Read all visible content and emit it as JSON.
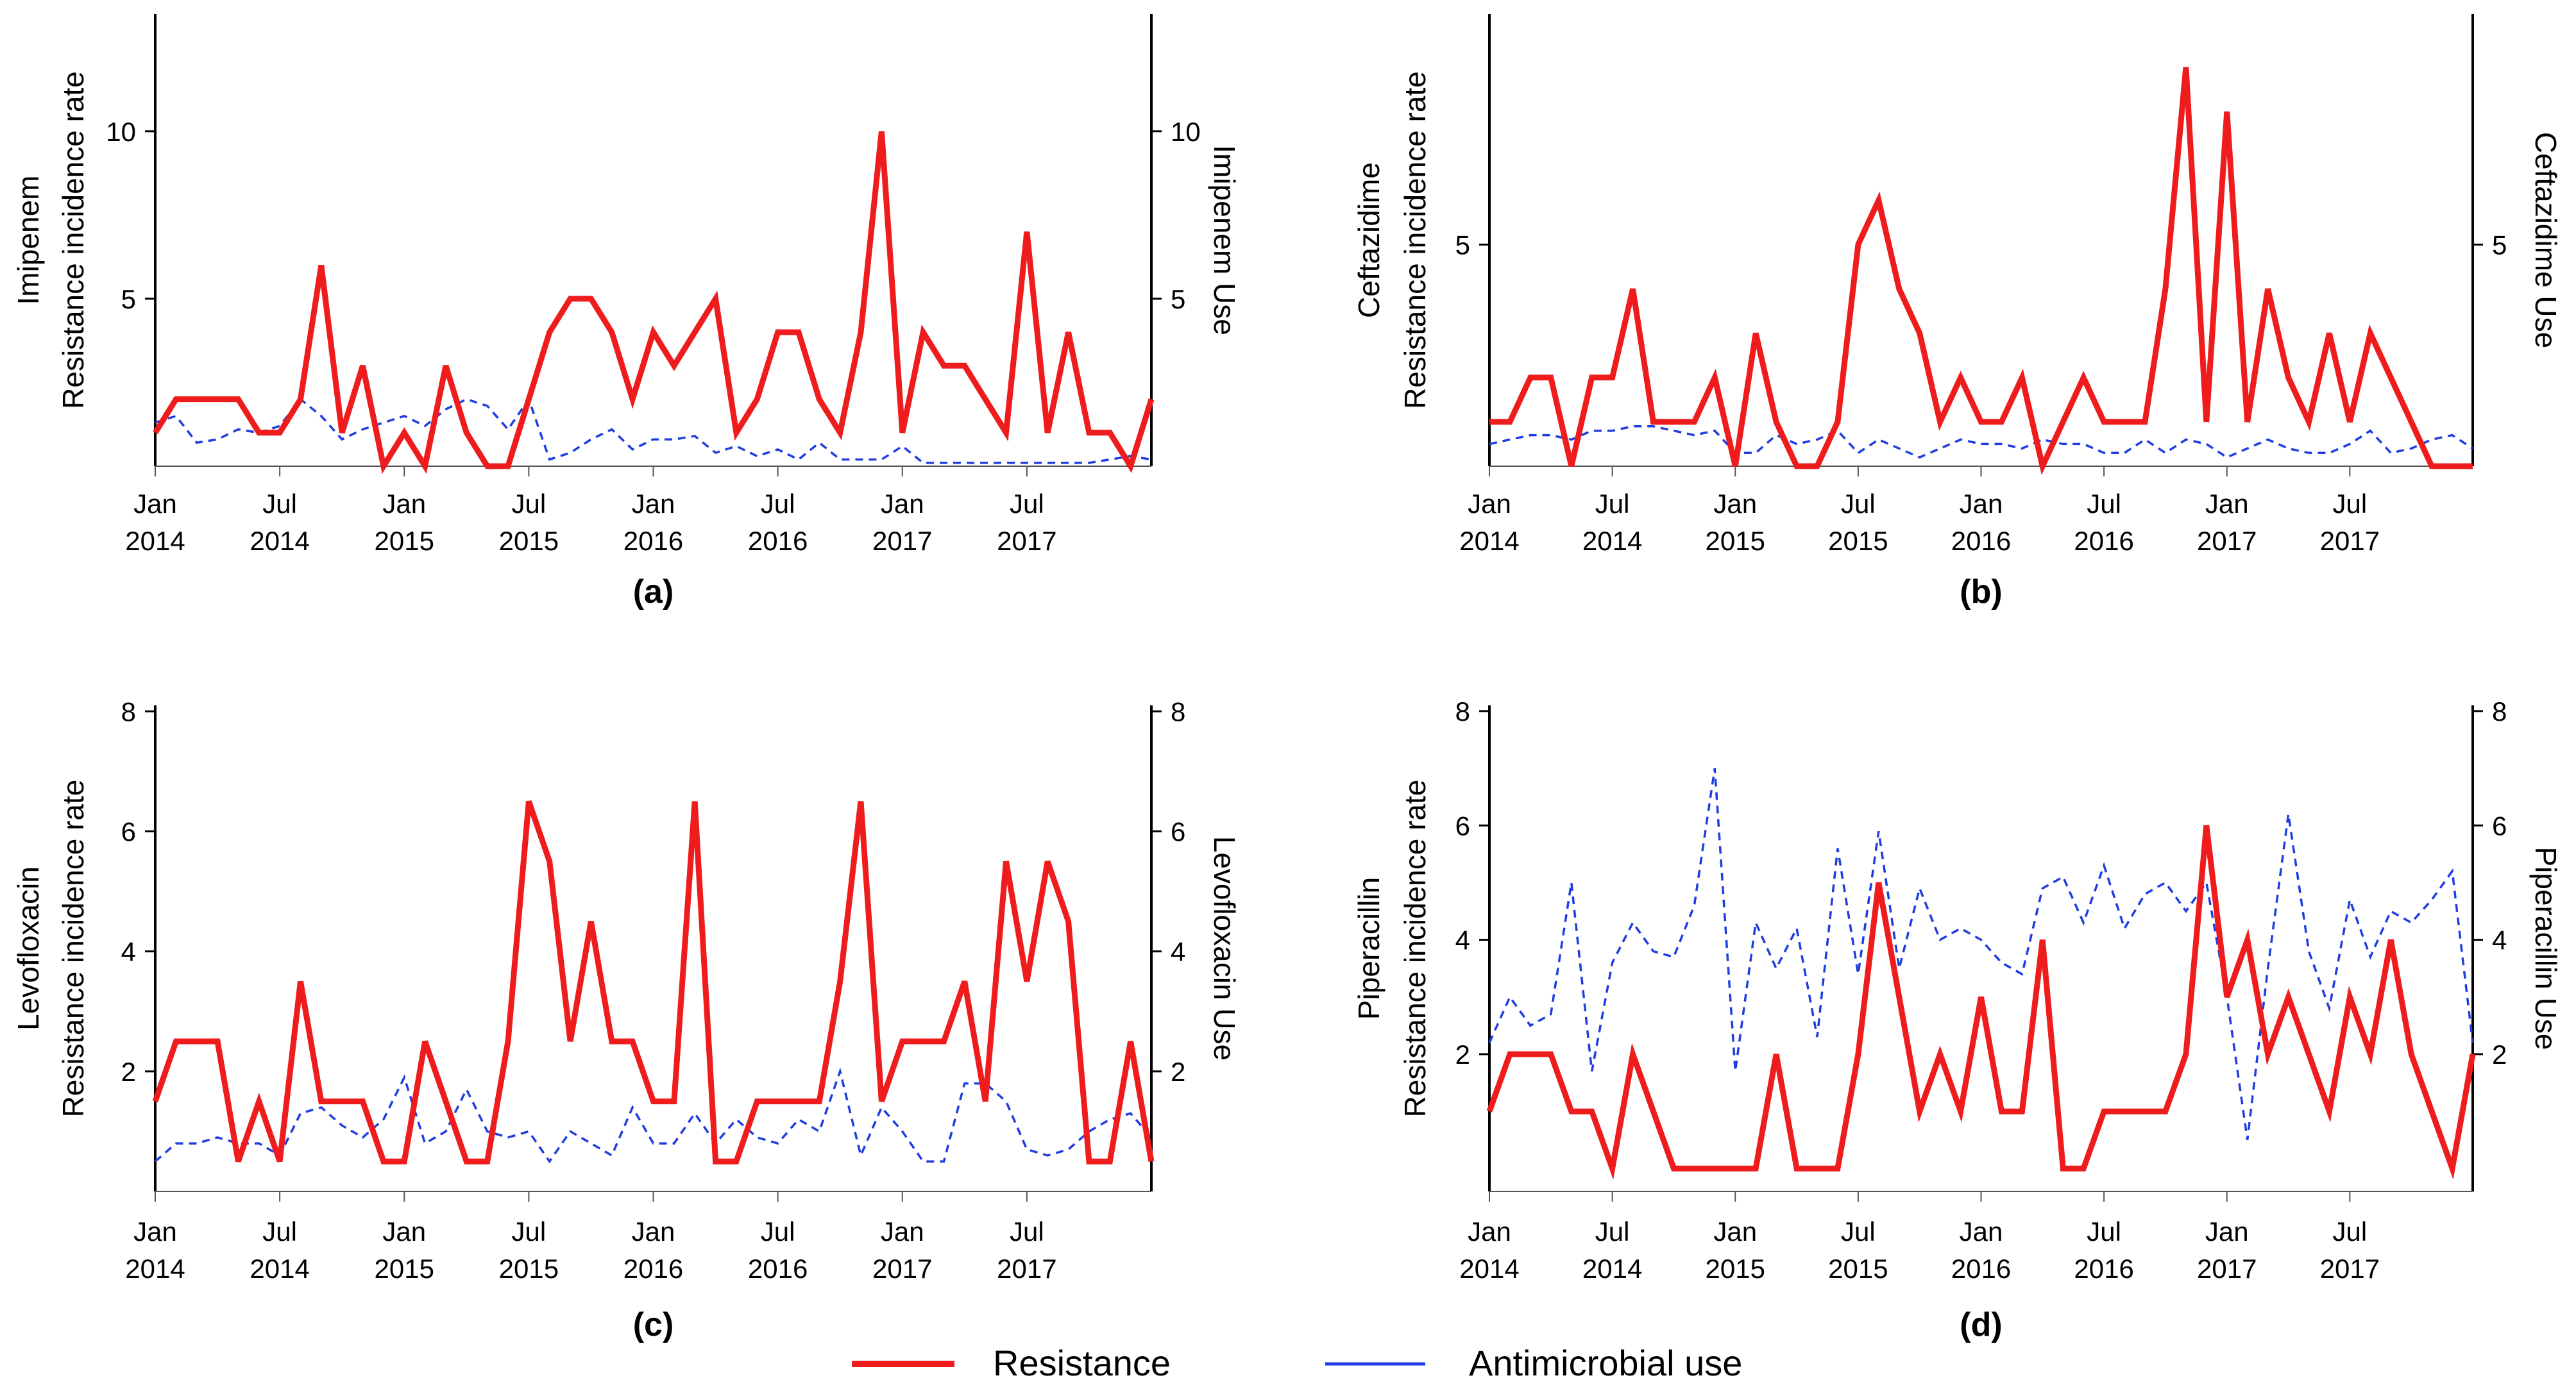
{
  "chart_data": [
    {
      "type": "line",
      "panel_label": "(a)",
      "drug": "Imipenem",
      "ylabel_left": "Resistance incidence rate",
      "ylabel_right": "Imipenem  Use",
      "ylim_left": [
        0,
        13.5
      ],
      "ylim_right": [
        0,
        13.5
      ],
      "yticks_left": [
        5,
        10
      ],
      "yticks_right": [
        5,
        10
      ],
      "x_ticks": [
        {
          "index": 0,
          "line1": "Jan",
          "line2": "2014"
        },
        {
          "index": 6,
          "line1": "Jul",
          "line2": "2014"
        },
        {
          "index": 12,
          "line1": "Jan",
          "line2": "2015"
        },
        {
          "index": 18,
          "line1": "Jul",
          "line2": "2015"
        },
        {
          "index": 24,
          "line1": "Jan",
          "line2": "2016"
        },
        {
          "index": 30,
          "line1": "Jul",
          "line2": "2016"
        },
        {
          "index": 36,
          "line1": "Jan",
          "line2": "2017"
        },
        {
          "index": 42,
          "line1": "Jul",
          "line2": "2017"
        }
      ],
      "series": [
        {
          "name": "Resistance",
          "axis": "left",
          "color": "#ee1c1c",
          "style": "solid",
          "values": [
            1,
            2,
            2,
            2,
            2,
            1,
            1,
            2,
            6,
            1,
            3,
            0,
            1,
            0,
            3,
            1,
            0,
            0,
            2,
            4,
            5,
            5,
            4,
            2,
            4,
            3,
            4,
            5,
            1,
            2,
            4,
            4,
            2,
            1,
            4,
            10,
            1,
            4,
            3,
            3,
            2,
            1,
            7,
            1,
            4,
            1,
            1,
            0,
            2
          ]
        },
        {
          "name": "Antimicrobial use",
          "axis": "right",
          "color": "#1f3de0",
          "style": "dashed",
          "values": [
            1.3,
            1.5,
            0.7,
            0.8,
            1.1,
            1.0,
            1.2,
            2.0,
            1.5,
            0.8,
            1.1,
            1.3,
            1.5,
            1.2,
            1.7,
            2.0,
            1.8,
            1.1,
            2.0,
            0.2,
            0.4,
            0.8,
            1.1,
            0.5,
            0.8,
            0.8,
            0.9,
            0.4,
            0.6,
            0.3,
            0.5,
            0.2,
            0.7,
            0.2,
            0.2,
            0.2,
            0.6,
            0.1,
            0.1,
            0.1,
            0.1,
            0.1,
            0.1,
            0.1,
            0.1,
            0.1,
            0.2,
            0.3,
            0.2
          ]
        }
      ]
    },
    {
      "type": "line",
      "panel_label": "(b)",
      "drug": "Ceftazidime",
      "ylabel_left": "Resistance incidence rate",
      "ylabel_right": "Ceftazidime Use",
      "ylim_left": [
        0,
        10.2
      ],
      "ylim_right": [
        0,
        10.2
      ],
      "yticks_left": [
        5
      ],
      "yticks_right": [
        5
      ],
      "x_ticks": [
        {
          "index": 0,
          "line1": "Jan",
          "line2": "2014"
        },
        {
          "index": 6,
          "line1": "Jul",
          "line2": "2014"
        },
        {
          "index": 12,
          "line1": "Jan",
          "line2": "2015"
        },
        {
          "index": 18,
          "line1": "Jul",
          "line2": "2015"
        },
        {
          "index": 24,
          "line1": "Jan",
          "line2": "2016"
        },
        {
          "index": 30,
          "line1": "Jul",
          "line2": "2016"
        },
        {
          "index": 36,
          "line1": "Jan",
          "line2": "2017"
        },
        {
          "index": 42,
          "line1": "Jul",
          "line2": "2017"
        }
      ],
      "series": [
        {
          "name": "Resistance",
          "axis": "left",
          "color": "#ee1c1c",
          "style": "solid",
          "values": [
            1,
            1,
            2,
            2,
            0,
            2,
            2,
            4,
            1,
            1,
            1,
            2,
            0,
            3,
            1,
            0,
            0,
            1,
            5,
            6,
            4,
            3,
            1,
            2,
            1,
            1,
            2,
            0,
            1,
            2,
            1,
            1,
            1,
            4,
            9,
            1,
            8,
            1,
            4,
            2,
            1,
            3,
            1,
            3,
            2,
            1,
            0,
            0,
            0
          ]
        },
        {
          "name": "Antimicrobial use",
          "axis": "right",
          "color": "#1f3de0",
          "style": "dashed",
          "values": [
            0.5,
            0.6,
            0.7,
            0.7,
            0.6,
            0.8,
            0.8,
            0.9,
            0.9,
            0.8,
            0.7,
            0.8,
            0.3,
            0.3,
            0.7,
            0.5,
            0.6,
            0.8,
            0.3,
            0.6,
            0.4,
            0.2,
            0.4,
            0.6,
            0.5,
            0.5,
            0.4,
            0.6,
            0.5,
            0.5,
            0.3,
            0.3,
            0.6,
            0.3,
            0.6,
            0.5,
            0.2,
            0.4,
            0.6,
            0.4,
            0.3,
            0.3,
            0.5,
            0.8,
            0.3,
            0.4,
            0.6,
            0.7,
            0.4
          ]
        }
      ]
    },
    {
      "type": "line",
      "panel_label": "(c)",
      "drug": "Levofloxacin",
      "ylabel_left": "Resistance incidence rate",
      "ylabel_right": "Levofloxacin Use",
      "ylim_left": [
        0,
        8.1
      ],
      "ylim_right": [
        0,
        8.1
      ],
      "yticks_left": [
        2,
        4,
        6,
        8
      ],
      "yticks_right": [
        2,
        4,
        6,
        8
      ],
      "x_ticks": [
        {
          "index": 0,
          "line1": "Jan",
          "line2": "2014"
        },
        {
          "index": 6,
          "line1": "Jul",
          "line2": "2014"
        },
        {
          "index": 12,
          "line1": "Jan",
          "line2": "2015"
        },
        {
          "index": 18,
          "line1": "Jul",
          "line2": "2015"
        },
        {
          "index": 24,
          "line1": "Jan",
          "line2": "2016"
        },
        {
          "index": 30,
          "line1": "Jul",
          "line2": "2016"
        },
        {
          "index": 36,
          "line1": "Jan",
          "line2": "2017"
        },
        {
          "index": 42,
          "line1": "Jul",
          "line2": "2017"
        }
      ],
      "series": [
        {
          "name": "Resistance",
          "axis": "left",
          "color": "#ee1c1c",
          "style": "solid",
          "values": [
            1.5,
            2.5,
            2.5,
            2.5,
            0.5,
            1.5,
            0.5,
            3.5,
            1.5,
            1.5,
            1.5,
            0.5,
            0.5,
            2.5,
            1.5,
            0.5,
            0.5,
            2.5,
            6.5,
            5.5,
            2.5,
            4.5,
            2.5,
            2.5,
            1.5,
            1.5,
            6.5,
            0.5,
            0.5,
            1.5,
            1.5,
            1.5,
            1.5,
            3.5,
            6.5,
            1.5,
            2.5,
            2.5,
            2.5,
            3.5,
            1.5,
            5.5,
            3.5,
            5.5,
            4.5,
            0.5,
            0.5,
            2.5,
            0.5
          ]
        },
        {
          "name": "Antimicrobial use",
          "axis": "right",
          "color": "#1f3de0",
          "style": "dashed",
          "values": [
            0.5,
            0.8,
            0.8,
            0.9,
            0.8,
            0.8,
            0.6,
            1.3,
            1.4,
            1.1,
            0.9,
            1.2,
            1.9,
            0.8,
            1.0,
            1.7,
            1.0,
            0.9,
            1.0,
            0.5,
            1.0,
            0.8,
            0.6,
            1.4,
            0.8,
            0.8,
            1.3,
            0.8,
            1.2,
            0.9,
            0.8,
            1.2,
            1.0,
            2.0,
            0.6,
            1.4,
            1.0,
            0.5,
            0.5,
            1.8,
            1.8,
            1.5,
            0.7,
            0.6,
            0.7,
            1.0,
            1.2,
            1.3,
            0.9
          ]
        }
      ]
    },
    {
      "type": "line",
      "panel_label": "(d)",
      "drug": "Piperacillin",
      "ylabel_left": "Resistance incidence rate",
      "ylabel_right": "Piperacillin Use",
      "ylim_left": [
        -0.4,
        8.1
      ],
      "ylim_right": [
        -0.4,
        8.1
      ],
      "yticks_left": [
        2,
        4,
        6,
        8
      ],
      "yticks_right": [
        2,
        4,
        6,
        8
      ],
      "x_ticks": [
        {
          "index": 0,
          "line1": "Jan",
          "line2": "2014"
        },
        {
          "index": 6,
          "line1": "Jul",
          "line2": "2014"
        },
        {
          "index": 12,
          "line1": "Jan",
          "line2": "2015"
        },
        {
          "index": 18,
          "line1": "Jul",
          "line2": "2015"
        },
        {
          "index": 24,
          "line1": "Jan",
          "line2": "2016"
        },
        {
          "index": 30,
          "line1": "Jul",
          "line2": "2016"
        },
        {
          "index": 36,
          "line1": "Jan",
          "line2": "2017"
        },
        {
          "index": 42,
          "line1": "Jul",
          "line2": "2017"
        }
      ],
      "series": [
        {
          "name": "Resistance",
          "axis": "left",
          "color": "#ee1c1c",
          "style": "solid",
          "values": [
            1,
            2,
            2,
            2,
            1,
            1,
            0,
            2,
            1,
            0,
            0,
            0,
            0,
            0,
            2,
            0,
            0,
            0,
            2,
            5,
            3,
            1,
            2,
            1,
            3,
            1,
            1,
            4,
            0,
            0,
            1,
            1,
            1,
            1,
            2,
            6,
            3,
            4,
            2,
            3,
            2,
            1,
            3,
            2,
            4,
            2,
            1,
            0,
            2
          ]
        },
        {
          "name": "Antimicrobial use",
          "axis": "right",
          "color": "#1f3de0",
          "style": "dashed",
          "values": [
            2.2,
            3.0,
            2.5,
            2.7,
            5.0,
            1.7,
            3.6,
            4.3,
            3.8,
            3.7,
            4.6,
            7.0,
            1.7,
            4.3,
            3.5,
            4.2,
            2.3,
            5.6,
            3.4,
            5.9,
            3.5,
            4.9,
            4.0,
            4.2,
            4.0,
            3.6,
            3.4,
            4.9,
            5.1,
            4.3,
            5.3,
            4.2,
            4.8,
            5.0,
            4.5,
            5.0,
            3.0,
            0.5,
            3.5,
            6.2,
            3.8,
            2.8,
            4.7,
            3.7,
            4.5,
            4.3,
            4.7,
            5.2,
            2.2
          ]
        }
      ]
    }
  ],
  "legend": {
    "items": [
      {
        "label": "Resistance",
        "color": "#ee1c1c",
        "style": "solid"
      },
      {
        "label": "Antimicrobial use",
        "color": "#1f3de0",
        "style": "dashed"
      }
    ]
  }
}
